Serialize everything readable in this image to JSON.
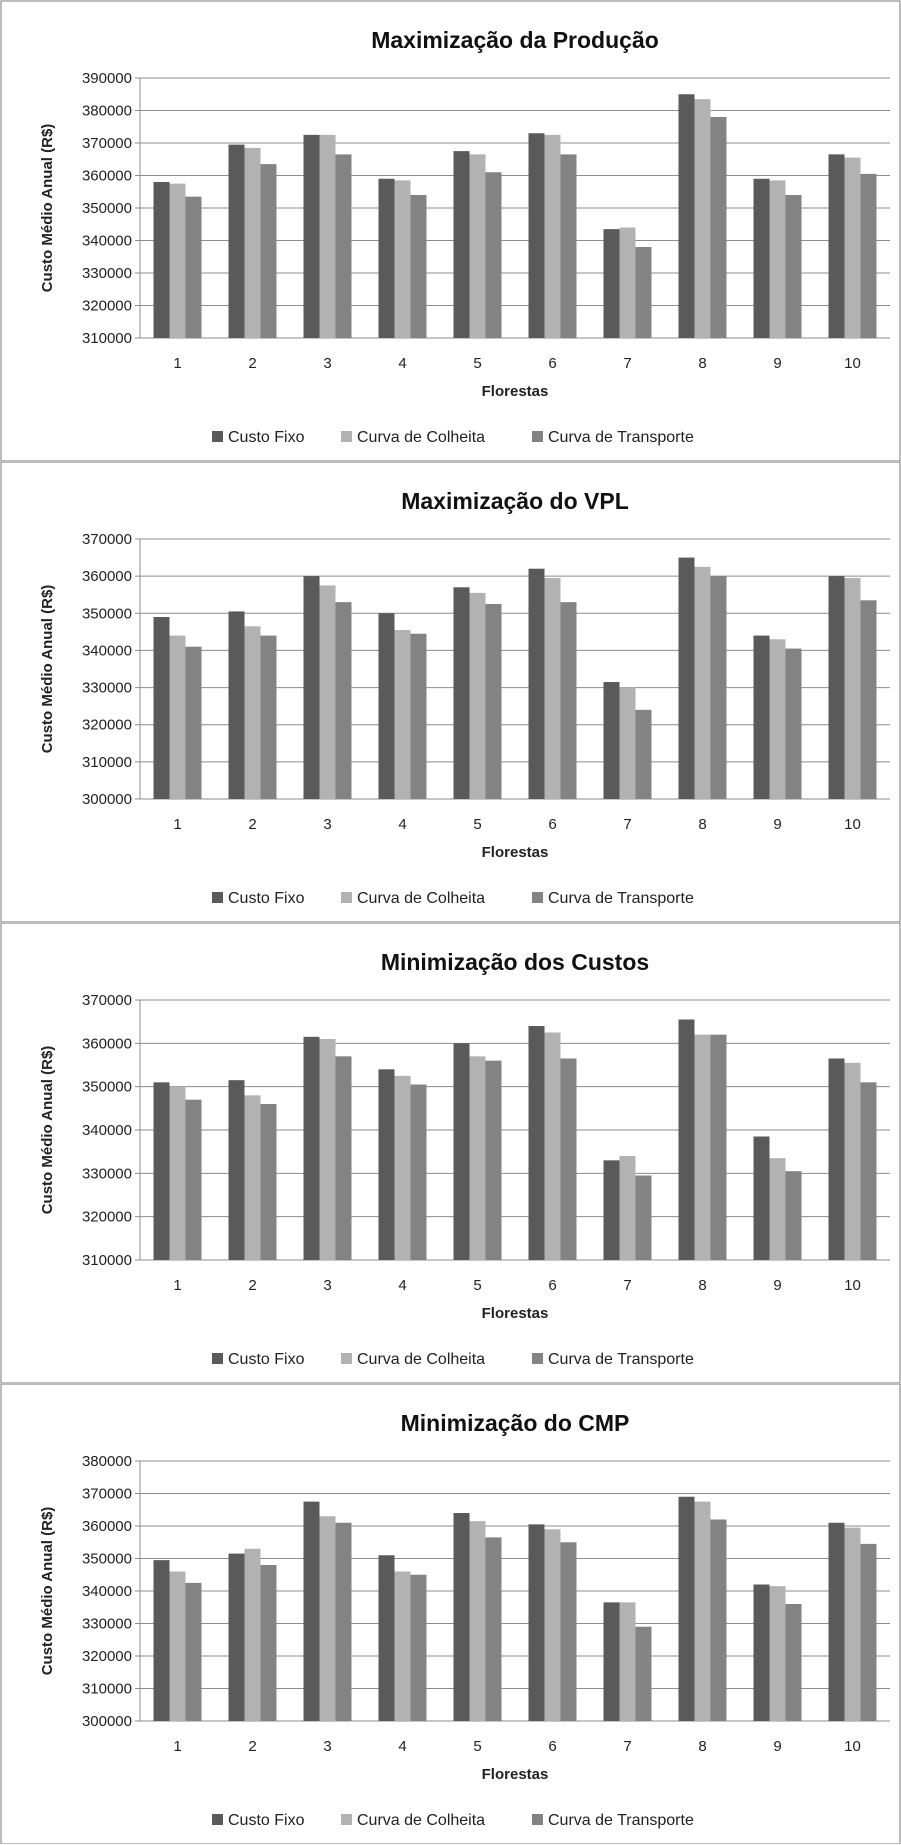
{
  "colors": {
    "series": [
      "#5a5a5a",
      "#b2b2b2",
      "#838383"
    ],
    "grid": "#8c8c8c",
    "border": "#7a7a7a"
  },
  "chart_data": [
    {
      "type": "bar",
      "title": "Maximização da Produção",
      "xlabel": "Florestas",
      "ylabel": "Custo Médio Anual (R$)",
      "ylim": [
        310000,
        390000
      ],
      "yticks": [
        310000,
        320000,
        330000,
        340000,
        350000,
        360000,
        370000,
        380000,
        390000
      ],
      "grid": true,
      "legend": "bottom",
      "categories": [
        "1",
        "2",
        "3",
        "4",
        "5",
        "6",
        "7",
        "8",
        "9",
        "10"
      ],
      "series": [
        {
          "name": "Custo Fixo",
          "values": [
            358000,
            369500,
            372500,
            359000,
            367500,
            373000,
            343500,
            385000,
            359000,
            366500
          ]
        },
        {
          "name": "Curva de Colheita",
          "values": [
            357500,
            368500,
            372500,
            358500,
            366500,
            372500,
            344000,
            383500,
            358500,
            365500
          ]
        },
        {
          "name": "Curva de Transporte",
          "values": [
            353500,
            363500,
            366500,
            354000,
            361000,
            366500,
            338000,
            378000,
            354000,
            360500
          ]
        }
      ]
    },
    {
      "type": "bar",
      "title": "Maximização do VPL",
      "xlabel": "Florestas",
      "ylabel": "Custo Médio Anual (R$)",
      "ylim": [
        300000,
        370000
      ],
      "yticks": [
        300000,
        310000,
        320000,
        330000,
        340000,
        350000,
        360000,
        370000
      ],
      "grid": true,
      "legend": "bottom",
      "categories": [
        "1",
        "2",
        "3",
        "4",
        "5",
        "6",
        "7",
        "8",
        "9",
        "10"
      ],
      "series": [
        {
          "name": "Custo Fixo",
          "values": [
            349000,
            350500,
            360000,
            350000,
            357000,
            362000,
            331500,
            365000,
            344000,
            360000
          ]
        },
        {
          "name": "Curva de Colheita",
          "values": [
            344000,
            346500,
            357500,
            345500,
            355500,
            359500,
            330000,
            362500,
            343000,
            359500
          ]
        },
        {
          "name": "Curva de Transporte",
          "values": [
            341000,
            344000,
            353000,
            344500,
            352500,
            353000,
            324000,
            360000,
            340500,
            353500
          ]
        }
      ]
    },
    {
      "type": "bar",
      "title": "Minimização dos Custos",
      "xlabel": "Florestas",
      "ylabel": "Custo Médio Anual (R$)",
      "ylim": [
        310000,
        370000
      ],
      "yticks": [
        310000,
        320000,
        330000,
        340000,
        350000,
        360000,
        370000
      ],
      "grid": true,
      "legend": "bottom",
      "categories": [
        "1",
        "2",
        "3",
        "4",
        "5",
        "6",
        "7",
        "8",
        "9",
        "10"
      ],
      "series": [
        {
          "name": "Custo Fixo",
          "values": [
            351000,
            351500,
            361500,
            354000,
            360000,
            364000,
            333000,
            365500,
            338500,
            356500
          ]
        },
        {
          "name": "Curva de Colheita",
          "values": [
            350000,
            348000,
            361000,
            352500,
            357000,
            362500,
            334000,
            362000,
            333500,
            355500
          ]
        },
        {
          "name": "Curva de Transporte",
          "values": [
            347000,
            346000,
            357000,
            350500,
            356000,
            356500,
            329500,
            362000,
            330500,
            351000
          ]
        }
      ]
    },
    {
      "type": "bar",
      "title": "Minimização do CMP",
      "xlabel": "Florestas",
      "ylabel": "Custo Médio Anual (R$)",
      "ylim": [
        300000,
        380000
      ],
      "yticks": [
        300000,
        310000,
        320000,
        330000,
        340000,
        350000,
        360000,
        370000,
        380000
      ],
      "grid": true,
      "legend": "bottom",
      "categories": [
        "1",
        "2",
        "3",
        "4",
        "5",
        "6",
        "7",
        "8",
        "9",
        "10"
      ],
      "series": [
        {
          "name": "Custo Fixo",
          "values": [
            349500,
            351500,
            367500,
            351000,
            364000,
            360500,
            336500,
            369000,
            342000,
            361000
          ]
        },
        {
          "name": "Curva de Colheita",
          "values": [
            346000,
            353000,
            363000,
            346000,
            361500,
            359000,
            336500,
            367500,
            341500,
            359500
          ]
        },
        {
          "name": "Curva de Transporte",
          "values": [
            342500,
            348000,
            361000,
            345000,
            356500,
            355000,
            329000,
            362000,
            336000,
            354500
          ]
        }
      ]
    }
  ]
}
